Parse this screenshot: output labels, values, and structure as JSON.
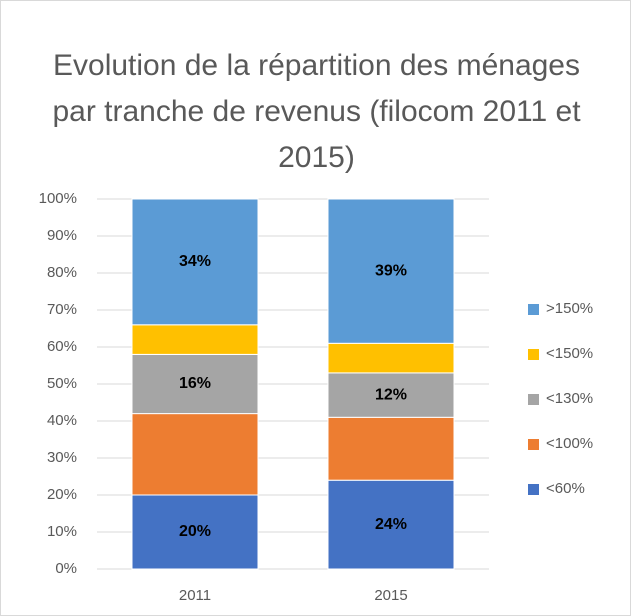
{
  "chart_data": {
    "type": "stacked_bar",
    "title": "Evolution de la répartition des ménages par tranche de revenus (filocom 2011 et 2015)",
    "categories": [
      "2011",
      "2015"
    ],
    "series": [
      {
        "name": "<60%",
        "color": "#4472c4",
        "values": [
          20,
          24
        ],
        "value_labels": [
          "20%",
          "24%"
        ]
      },
      {
        "name": "<100%",
        "color": "#ed7d31",
        "values": [
          22,
          17
        ],
        "value_labels": [
          null,
          null
        ]
      },
      {
        "name": "<130%",
        "color": "#a5a5a5",
        "values": [
          16,
          12
        ],
        "value_labels": [
          "16%",
          "12%"
        ]
      },
      {
        "name": "<150%",
        "color": "#ffc000",
        "values": [
          8,
          8
        ],
        "value_labels": [
          null,
          null
        ]
      },
      {
        "name": ">150%",
        "color": "#5b9bd5",
        "values": [
          34,
          39
        ],
        "value_labels": [
          "34%",
          "39%"
        ]
      }
    ],
    "ylim": [
      0,
      100
    ],
    "yticks": [
      {
        "value": 0,
        "label": "0%"
      },
      {
        "value": 10,
        "label": "10%"
      },
      {
        "value": 20,
        "label": "20%"
      },
      {
        "value": 30,
        "label": "30%"
      },
      {
        "value": 40,
        "label": "40%"
      },
      {
        "value": 50,
        "label": "50%"
      },
      {
        "value": 60,
        "label": "60%"
      },
      {
        "value": 70,
        "label": "70%"
      },
      {
        "value": 80,
        "label": "80%"
      },
      {
        "value": 90,
        "label": "90%"
      },
      {
        "value": 100,
        "label": "100%"
      }
    ],
    "grid": true,
    "legend": "right"
  }
}
